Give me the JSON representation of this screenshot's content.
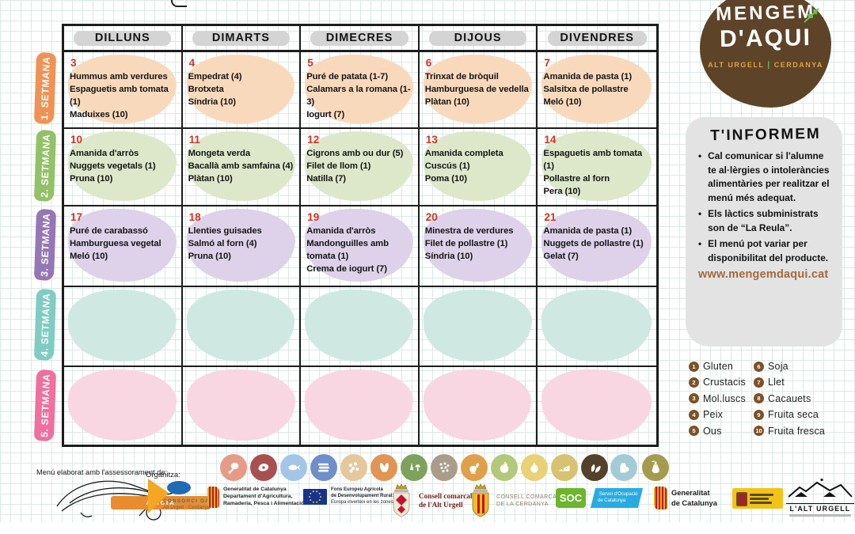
{
  "colors": {
    "date": "#d9301f",
    "header_band": "#d4d4d4",
    "allergen_badge": "#7d5126",
    "website": "#a3693a",
    "logo_brown": "#5d4328",
    "logo_accent": "#dfa43e",
    "leaf_green": "#6cc04a",
    "info_box_bg": "#e3e3e3"
  },
  "calendar": {
    "days": [
      "DILLUNS",
      "DIMARTS",
      "DIMECRES",
      "DIJOUS",
      "DIVENDRES"
    ],
    "weeks": [
      {
        "label": "1. SETMANA",
        "band_color": "#ef9254",
        "cell_color": "#f9d9bc",
        "cells": [
          {
            "date": "3",
            "items": [
              "Hummus amb verdures",
              "Espaguetis amb tomata (1)",
              "Maduixes (10)"
            ]
          },
          {
            "date": "4",
            "items": [
              "Empedrat (4)",
              "Brotxeta",
              "Síndria (10)"
            ]
          },
          {
            "date": "5",
            "items": [
              "Puré de patata (1-7)",
              "Calamars a la romana (1-3)",
              "Iogurt (7)"
            ]
          },
          {
            "date": "6",
            "items": [
              "Trinxat de bròquil",
              "Hamburguesa de vedella",
              "Plàtan (10)"
            ]
          },
          {
            "date": "7",
            "items": [
              "Amanida de pasta (1)",
              "Salsitxa de pollastre",
              "Meló (10)"
            ]
          }
        ]
      },
      {
        "label": "2. SETMANA",
        "band_color": "#92c167",
        "cell_color": "#dce8c9",
        "cells": [
          {
            "date": "10",
            "items": [
              "Amanida d'arròs",
              "Nuggets vegetals (1)",
              "Pruna (10)"
            ]
          },
          {
            "date": "11",
            "items": [
              "Mongeta verda",
              "Bacallà amb samfaina (4)",
              "Plàtan (10)"
            ]
          },
          {
            "date": "12",
            "items": [
              "Cigrons amb ou dur (5)",
              "Filet de llom (1)",
              "Natilla (7)"
            ]
          },
          {
            "date": "13",
            "items": [
              "Amanida completa",
              "Cuscús (1)",
              "Poma (10)"
            ]
          },
          {
            "date": "14",
            "items": [
              "Espaguetis amb tomata (1)",
              "Pollastre al forn",
              "Pera (10)"
            ]
          }
        ]
      },
      {
        "label": "3. SETMANA",
        "band_color": "#9577b5",
        "cell_color": "#ddd2e9",
        "cells": [
          {
            "date": "17",
            "items": [
              "Puré de carabassó",
              "Hamburguesa vegetal",
              "Meló (10)"
            ]
          },
          {
            "date": "18",
            "items": [
              "Llenties guisades",
              "Salmó al forn (4)",
              "Pruna (10)"
            ]
          },
          {
            "date": "19",
            "items": [
              "Amanida d'arròs",
              "Mandonguilles amb tomata (1)",
              "Crema de iogurt (7)"
            ]
          },
          {
            "date": "20",
            "items": [
              "Minestra de verdures",
              "Filet de pollastre (1)",
              "Síndria (10)"
            ]
          },
          {
            "date": "21",
            "items": [
              "Amanida de pasta (1)",
              "Nuggets de pollastre (1)",
              "Gelat (7)"
            ]
          }
        ]
      },
      {
        "label": "4. SETMANA",
        "band_color": "#7fccc3",
        "cell_color": "#cfe8e2",
        "cells": [
          {
            "date": "",
            "items": []
          },
          {
            "date": "",
            "items": []
          },
          {
            "date": "",
            "items": []
          },
          {
            "date": "",
            "items": []
          },
          {
            "date": "",
            "items": []
          }
        ]
      },
      {
        "label": "5. SETMANA",
        "band_color": "#ef6f9e",
        "cell_color": "#f8d6e2",
        "cells": [
          {
            "date": "",
            "items": []
          },
          {
            "date": "",
            "items": []
          },
          {
            "date": "",
            "items": []
          },
          {
            "date": "",
            "items": []
          },
          {
            "date": "",
            "items": []
          }
        ]
      }
    ]
  },
  "logo": {
    "line1": "MENGEM",
    "line2": "D'AQUI",
    "subtitle_left": "ALT URGELL",
    "subtitle_separator": "|",
    "subtitle_right": "CERDANYA"
  },
  "info_box": {
    "title": "T'INFORMEM",
    "bullets": [
      "Cal comunicar si l'alumne te al·lèrgies o intoleràncies alimentàries per realitzar el menú més adequat.",
      "Els làctics subministrats son de “La Reula”.",
      "El menú pot variar per disponibilitat del producte."
    ],
    "website": "www.mengemdaqui.cat"
  },
  "allergens": [
    {
      "num": "1",
      "label": "Gluten"
    },
    {
      "num": "2",
      "label": "Crustacis"
    },
    {
      "num": "3",
      "label": "Mol.luscs"
    },
    {
      "num": "4",
      "label": "Peix"
    },
    {
      "num": "5",
      "label": "Ous"
    },
    {
      "num": "6",
      "label": "Soja"
    },
    {
      "num": "7",
      "label": "Llet"
    },
    {
      "num": "8",
      "label": "Cacauets"
    },
    {
      "num": "9",
      "label": "Fruita seca"
    },
    {
      "num": "10",
      "label": "Fruita fresca"
    }
  ],
  "food_icons": [
    {
      "name": "drumstick-icon",
      "color": "#e59b85"
    },
    {
      "name": "meat-icon",
      "color": "#a85050"
    },
    {
      "name": "fish-icon",
      "color": "#a3c6e8"
    },
    {
      "name": "sardines-icon",
      "color": "#6f8fcb"
    },
    {
      "name": "pasta-icon",
      "color": "#e5c79c"
    },
    {
      "name": "corn-icon",
      "color": "#e09554"
    },
    {
      "name": "vegetables-icon",
      "color": "#7da25c"
    },
    {
      "name": "legumes-icon",
      "color": "#a99c8a"
    },
    {
      "name": "poultry-icon",
      "color": "#dfa049"
    },
    {
      "name": "apple-icon",
      "color": "#b3c878"
    },
    {
      "name": "fruit-icon",
      "color": "#e8d177"
    },
    {
      "name": "cheese-icon",
      "color": "#d6c270"
    },
    {
      "name": "herbs-icon",
      "color": "#54412b"
    },
    {
      "name": "milk-icon",
      "color": "#a2cbd6"
    },
    {
      "name": "oil-icon",
      "color": "#a49b4e"
    }
  ],
  "footer": {
    "advisory_label": "Menú elaborat amb l'assessorament de:",
    "alicia_label": "ALÍCIA",
    "organizer_label": "Organitza:",
    "consorci": {
      "line1": "CONSORCI GAL",
      "line2": "Alt Urgell - Cerdanya"
    },
    "logos": [
      {
        "name": "generalitat-agricultura",
        "lines": [
          "Generalitat de Catalunya",
          "Departament d'Agricultura,",
          "Ramaderia, Pesca i Alimentació"
        ]
      },
      {
        "name": "eu-feader",
        "lines": [
          "Fons Europeu Agrícola",
          "de Desenvolupament Rural:",
          "Europa inverteix en les zones rurals"
        ]
      },
      {
        "name": "consell-alt-urgell",
        "lines": [
          "Consell comarcal",
          "de l'Alt Urgell"
        ]
      },
      {
        "name": "consell-cerdanya",
        "lines": [
          "CONSELL COMARCAL",
          "DE LA CERDANYA"
        ]
      },
      {
        "name": "soc",
        "abbr": "SOC",
        "lines": [
          "Servei d'Ocupació",
          "de Catalunya"
        ]
      },
      {
        "name": "generalitat",
        "lines": [
          "Generalitat",
          "de Catalunya"
        ]
      },
      {
        "name": "alt-urgell-brand",
        "text": "L'ALT URGELL"
      }
    ]
  }
}
